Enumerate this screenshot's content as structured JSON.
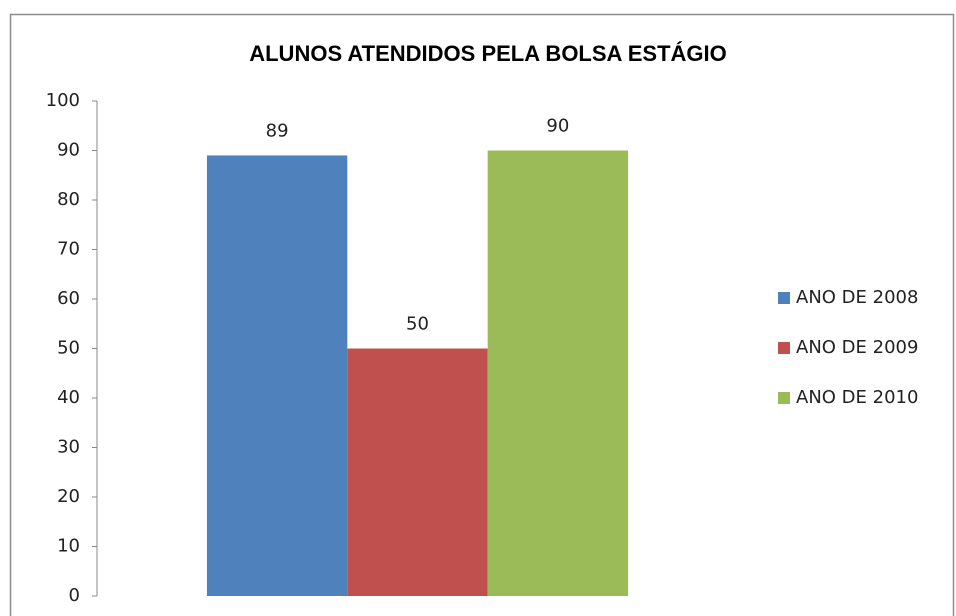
{
  "chart_data": {
    "type": "bar",
    "title": "ALUNOS ATENDIDOS PELA BOLSA ESTÁGIO",
    "categories": [
      null
    ],
    "series": [
      {
        "name": "ANO DE 2008",
        "color": "#4f81bd",
        "values": [
          89
        ]
      },
      {
        "name": "ANO DE 2009",
        "color": "#c0504d",
        "values": [
          50
        ]
      },
      {
        "name": "ANO DE 2010",
        "color": "#9bbb59",
        "values": [
          90
        ]
      }
    ],
    "ylim": [
      0,
      100
    ],
    "yticks": [
      0,
      10,
      20,
      30,
      40,
      50,
      60,
      70,
      80,
      90,
      100
    ],
    "grid": false,
    "legend": "right"
  }
}
